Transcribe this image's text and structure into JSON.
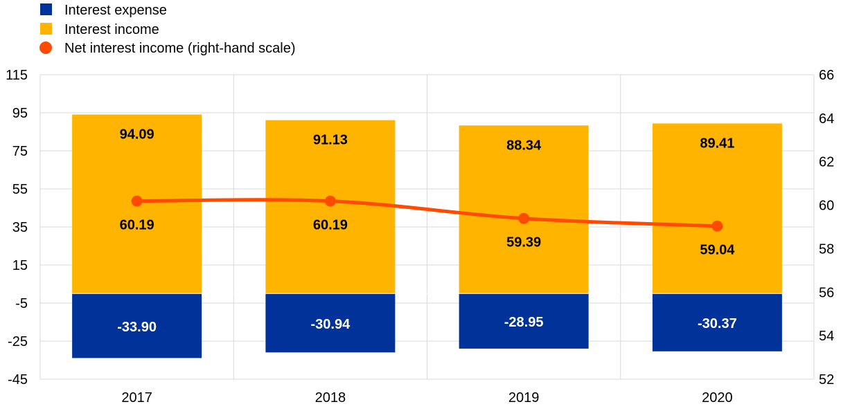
{
  "chart_data": {
    "type": "bar",
    "categories": [
      "2017",
      "2018",
      "2019",
      "2020"
    ],
    "series": [
      {
        "name": "Interest expense",
        "kind": "bar",
        "axis": "left",
        "color": "#003299",
        "label_color": "#ffffff",
        "values": [
          -33.9,
          -30.94,
          -28.95,
          -30.37
        ],
        "labels": [
          "-33.90",
          "-30.94",
          "-28.95",
          "-30.37"
        ]
      },
      {
        "name": "Interest income",
        "kind": "bar",
        "axis": "left",
        "color": "#ffb400",
        "label_color": "#000000",
        "values": [
          94.09,
          91.13,
          88.34,
          89.41
        ],
        "labels": [
          "94.09",
          "91.13",
          "88.34",
          "89.41"
        ]
      },
      {
        "name": "Net interest income (right-hand scale)",
        "kind": "line",
        "axis": "right",
        "color": "#ff4b00",
        "label_color": "#000000",
        "values": [
          60.19,
          60.19,
          59.39,
          59.04
        ],
        "labels": [
          "60.19",
          "60.19",
          "59.39",
          "59.04"
        ]
      }
    ],
    "y_left": {
      "ticks": [
        115,
        95,
        75,
        55,
        35,
        15,
        -5,
        -25,
        -45
      ],
      "tick_labels": [
        "115",
        "95",
        "75",
        "55",
        "35",
        "15",
        "-5",
        "-25",
        "-45"
      ],
      "ylim": [
        -45,
        115
      ]
    },
    "y_right": {
      "ticks": [
        66,
        64,
        62,
        60,
        58,
        56,
        54,
        52
      ],
      "tick_labels": [
        "66",
        "64",
        "62",
        "60",
        "58",
        "56",
        "54",
        "52"
      ],
      "ylim": [
        52,
        66
      ]
    },
    "legend": {
      "placement": "top-left",
      "entries": [
        {
          "label": "Interest expense",
          "marker": "square",
          "color": "#003299"
        },
        {
          "label": "Interest income",
          "marker": "square",
          "color": "#ffb400"
        },
        {
          "label": "Net interest income (right-hand scale)",
          "marker": "circle",
          "color": "#ff4b00"
        }
      ]
    },
    "grid": true,
    "grid_color": "#d9d9d9"
  }
}
